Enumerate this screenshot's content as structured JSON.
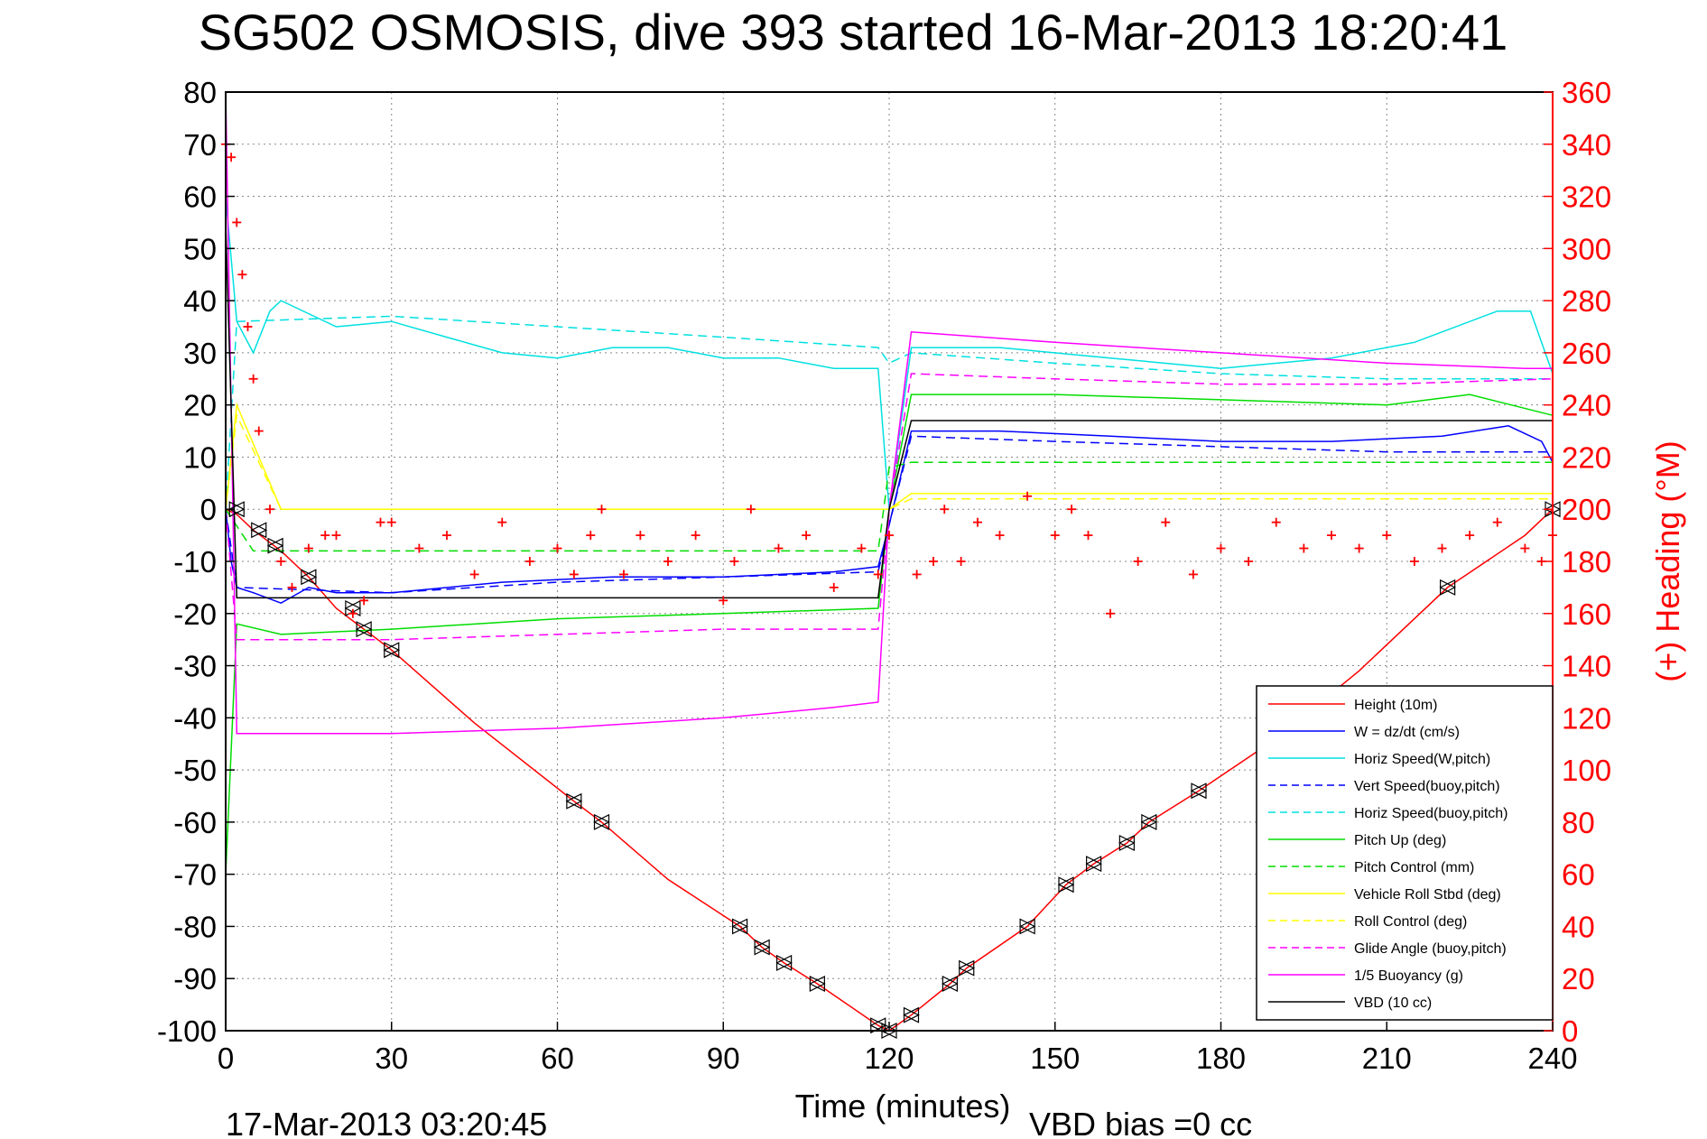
{
  "chart_data": {
    "type": "line",
    "title": "SG502 OSMOSIS, dive 393 started 16-Mar-2013 18:20:41",
    "xlabel": "Time (minutes)",
    "ylabel": "",
    "y2label": "(+) Heading (°M)",
    "footer_left": "17-Mar-2013 03:20:45",
    "footer_right": "VBD bias =0 cc",
    "xlim": [
      0,
      240
    ],
    "ylim": [
      -100,
      80
    ],
    "y2lim": [
      0,
      360
    ],
    "x_ticks": [
      0,
      30,
      60,
      90,
      120,
      150,
      180,
      210,
      240
    ],
    "y_ticks": [
      80,
      70,
      60,
      50,
      40,
      30,
      20,
      10,
      0,
      -10,
      -20,
      -30,
      -40,
      -50,
      -60,
      -70,
      -80,
      -90,
      -100
    ],
    "y2_ticks": [
      360,
      340,
      320,
      300,
      280,
      260,
      240,
      220,
      200,
      180,
      160,
      140,
      120,
      100,
      80,
      60,
      40,
      20,
      0
    ],
    "grid": true,
    "legend_position": "bottom-right",
    "series": [
      {
        "name": "Height (10m)",
        "color": "#ff0000",
        "style": "solid",
        "x": [
          0,
          2,
          5,
          10,
          15,
          20,
          25,
          30,
          45,
          63,
          68,
          80,
          93,
          97,
          101,
          107,
          118,
          120,
          124,
          131,
          134,
          145,
          152,
          157,
          163,
          167,
          176,
          190,
          205,
          221,
          235,
          240
        ],
        "y": [
          0,
          -1,
          -4,
          -8,
          -13,
          -19,
          -23,
          -27,
          -41,
          -56,
          -60,
          -71,
          -80,
          -84,
          -87,
          -91,
          -99,
          -100,
          -97,
          -91,
          -88,
          -80,
          -72,
          -68,
          -64,
          -60,
          -54,
          -44,
          -31,
          -15,
          -5,
          0
        ]
      },
      {
        "name": "W = dz/dt (cm/s)",
        "color": "#0000ff",
        "style": "solid",
        "x": [
          0,
          1,
          2,
          5,
          10,
          15,
          20,
          30,
          50,
          70,
          90,
          110,
          118,
          120,
          124,
          140,
          160,
          180,
          200,
          220,
          232,
          238,
          240
        ],
        "y": [
          0,
          -10,
          -15,
          -16,
          -18,
          -15,
          -16,
          -16,
          -14,
          -13,
          -13,
          -12,
          -11,
          -3,
          15,
          15,
          14,
          13,
          13,
          14,
          16,
          13,
          9
        ]
      },
      {
        "name": "Horiz Speed(W,pitch)",
        "color": "#00e0e0",
        "style": "solid",
        "x": [
          0,
          2,
          5,
          8,
          10,
          20,
          30,
          40,
          50,
          60,
          70,
          80,
          90,
          100,
          110,
          118,
          120,
          124,
          140,
          160,
          180,
          200,
          215,
          230,
          236,
          240
        ],
        "y": [
          60,
          36,
          30,
          38,
          40,
          35,
          36,
          33,
          30,
          29,
          31,
          31,
          29,
          29,
          27,
          27,
          0,
          31,
          31,
          29,
          27,
          29,
          32,
          38,
          38,
          26
        ]
      },
      {
        "name": "Vert Speed(buoy,pitch)",
        "color": "#0000ff",
        "style": "dashed",
        "x": [
          0,
          2,
          30,
          60,
          90,
          118,
          120,
          124,
          150,
          180,
          210,
          240
        ],
        "y": [
          0,
          -15,
          -16,
          -14,
          -13,
          -12,
          -3,
          14,
          13,
          12,
          11,
          11
        ]
      },
      {
        "name": "Horiz Speed(buoy,pitch)",
        "color": "#00e0e0",
        "style": "dashed",
        "x": [
          0,
          2,
          30,
          60,
          90,
          118,
          120,
          124,
          150,
          180,
          210,
          240
        ],
        "y": [
          0,
          36,
          37,
          35,
          33,
          31,
          28,
          30,
          28,
          26,
          25,
          25
        ]
      },
      {
        "name": "Pitch Up (deg)",
        "color": "#00dd00",
        "style": "solid",
        "x": [
          0,
          2,
          10,
          30,
          60,
          90,
          118,
          120,
          124,
          150,
          180,
          210,
          225,
          240
        ],
        "y": [
          -70,
          -22,
          -24,
          -23,
          -21,
          -20,
          -19,
          0,
          22,
          22,
          21,
          20,
          22,
          18
        ]
      },
      {
        "name": "Pitch Control (mm)",
        "color": "#00dd00",
        "style": "dashed",
        "x": [
          0,
          5,
          118,
          120,
          124,
          240
        ],
        "y": [
          0,
          -8,
          -8,
          8,
          9,
          9
        ]
      },
      {
        "name": "Vehicle Roll Stbd (deg)",
        "color": "#ffff00",
        "style": "solid",
        "x": [
          0,
          2,
          10,
          60,
          118,
          120,
          124,
          180,
          240
        ],
        "y": [
          0,
          20,
          0,
          0,
          0,
          0,
          3,
          3,
          3
        ]
      },
      {
        "name": "Roll Control (deg)",
        "color": "#ffff00",
        "style": "dashed",
        "x": [
          0,
          2,
          10,
          118,
          120,
          124,
          240
        ],
        "y": [
          0,
          18,
          0,
          0,
          0,
          2,
          2
        ]
      },
      {
        "name": "Glide Angle (buoy,pitch)",
        "color": "#ff00ff",
        "style": "dashed",
        "x": [
          0,
          2,
          30,
          60,
          90,
          118,
          120,
          124,
          150,
          180,
          210,
          240
        ],
        "y": [
          0,
          -25,
          -25,
          -24,
          -23,
          -23,
          0,
          26,
          25,
          24,
          24,
          25
        ]
      },
      {
        "name": "1/5 Buoyancy (g)",
        "color": "#ff00ff",
        "style": "solid",
        "x": [
          0,
          2,
          30,
          60,
          90,
          110,
          118,
          120,
          124,
          150,
          180,
          210,
          235,
          240
        ],
        "y": [
          80,
          -43,
          -43,
          -42,
          -40,
          -38,
          -37,
          0,
          34,
          32,
          30,
          28,
          27,
          27
        ]
      },
      {
        "name": "VBD (10 cc)",
        "color": "#000000",
        "style": "solid",
        "x": [
          0,
          2,
          5,
          30,
          118,
          120,
          124,
          240
        ],
        "y": [
          55,
          -17,
          -17,
          -17,
          -17,
          0,
          17,
          17
        ]
      }
    ],
    "heading_series": {
      "color": "#ff0000",
      "marker": "plus",
      "axis": "right",
      "x": [
        0,
        1,
        2,
        3,
        4,
        5,
        6,
        8,
        10,
        12,
        15,
        18,
        20,
        23,
        25,
        28,
        30,
        35,
        40,
        45,
        50,
        55,
        60,
        63,
        66,
        68,
        72,
        75,
        80,
        85,
        90,
        92,
        95,
        100,
        105,
        110,
        115,
        118,
        120,
        125,
        128,
        130,
        133,
        136,
        140,
        145,
        150,
        153,
        156,
        160,
        165,
        170,
        175,
        180,
        185,
        190,
        195,
        200,
        205,
        210,
        215,
        220,
        225,
        230,
        235,
        238,
        240
      ],
      "y": [
        340,
        335,
        310,
        290,
        270,
        250,
        230,
        200,
        180,
        170,
        185,
        190,
        190,
        160,
        165,
        195,
        195,
        185,
        190,
        175,
        195,
        180,
        185,
        175,
        190,
        200,
        175,
        190,
        180,
        190,
        165,
        180,
        200,
        185,
        190,
        170,
        185,
        175,
        190,
        175,
        180,
        200,
        180,
        195,
        190,
        205,
        190,
        200,
        190,
        160,
        180,
        195,
        175,
        185,
        180,
        195,
        185,
        190,
        185,
        190,
        180,
        185,
        190,
        195,
        185,
        180,
        190
      ]
    },
    "vehicle_markers": {
      "color": "#000000",
      "marker": "triangle",
      "x": [
        2,
        6,
        9,
        15,
        23,
        25,
        30,
        63,
        68,
        93,
        97,
        101,
        107,
        118,
        120,
        124,
        131,
        134,
        145,
        152,
        157,
        163,
        167,
        176,
        221,
        240
      ],
      "y": [
        0,
        -4,
        -7,
        -13,
        -19,
        -23,
        -27,
        -56,
        -60,
        -80,
        -84,
        -87,
        -91,
        -99,
        -100,
        -97,
        -91,
        -88,
        -80,
        -72,
        -68,
        -64,
        -60,
        -54,
        -15,
        0
      ]
    }
  }
}
